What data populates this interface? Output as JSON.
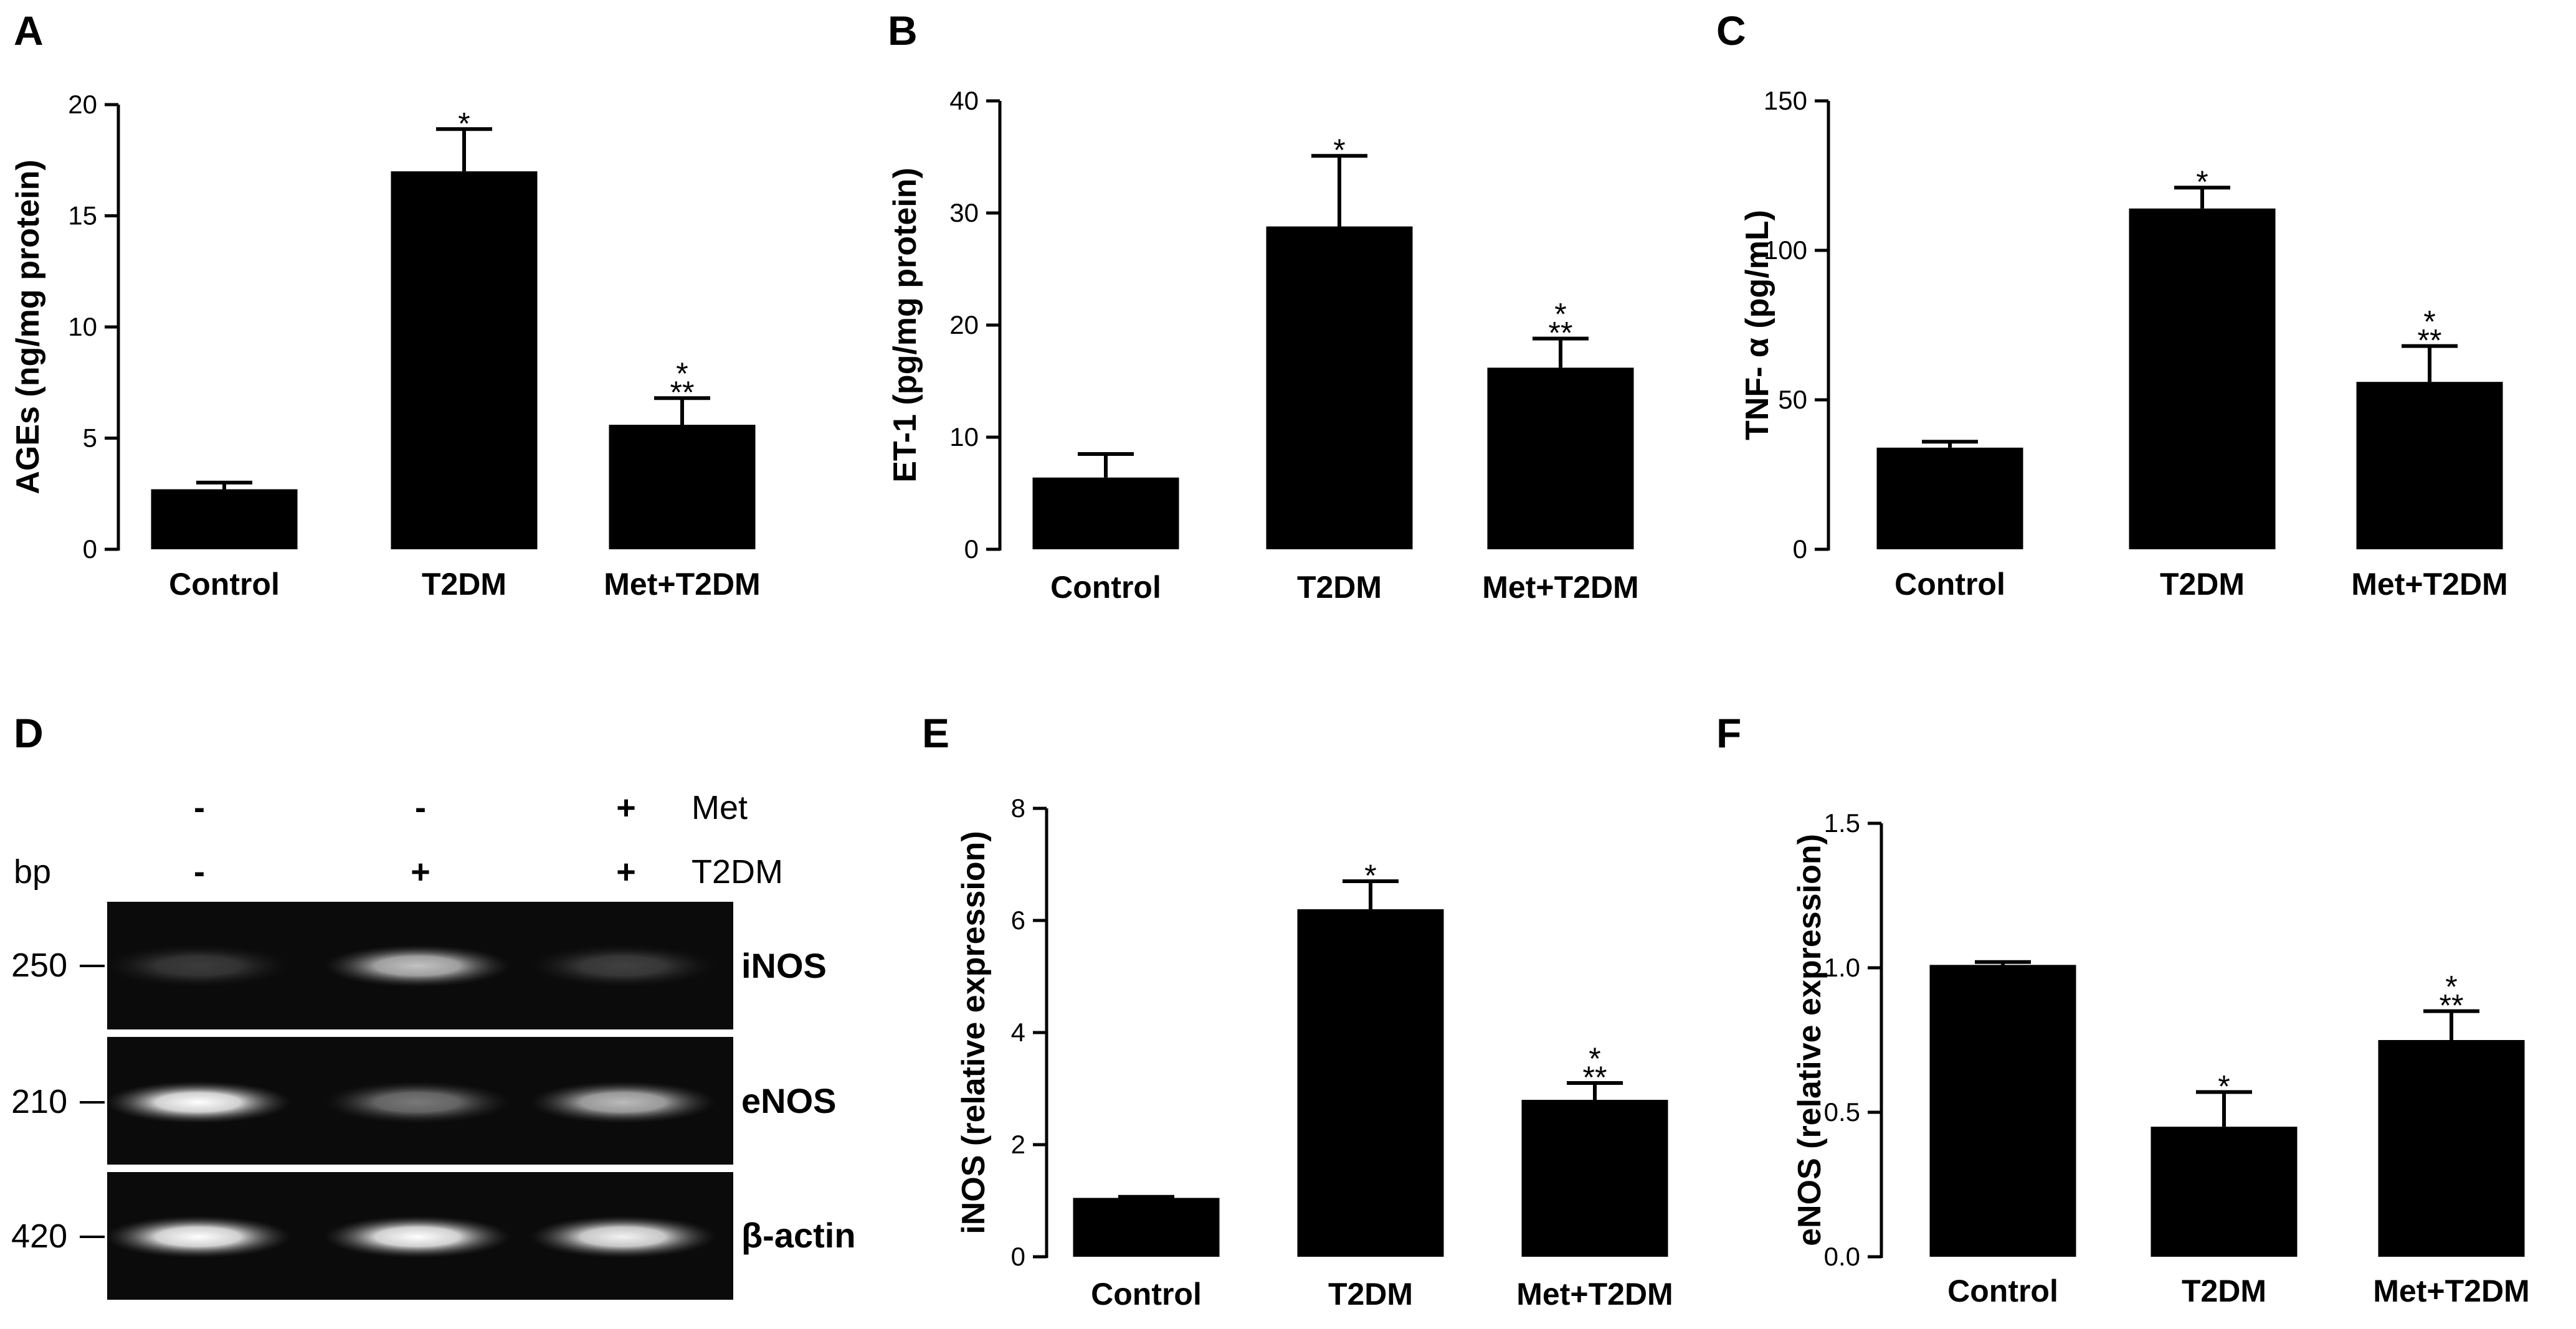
{
  "figure": {
    "panel_letters": [
      "A",
      "B",
      "C",
      "D",
      "E",
      "F"
    ]
  },
  "chart_data": [
    {
      "panel": "A",
      "type": "bar",
      "categories": [
        "Control",
        "T2DM",
        "Met+T2DM"
      ],
      "values": [
        2.7,
        17.0,
        5.6
      ],
      "errors": [
        0.3,
        1.9,
        1.2
      ],
      "significance": [
        [],
        [
          "*"
        ],
        [
          "*",
          "**"
        ]
      ],
      "ylabel": "AGEs (ng/mg protein)",
      "ylim": [
        0,
        20
      ],
      "yticks": [
        "0",
        "5",
        "10",
        "15",
        "20"
      ]
    },
    {
      "panel": "B",
      "type": "bar",
      "categories": [
        "Control",
        "T2DM",
        "Met+T2DM"
      ],
      "values": [
        6.4,
        28.8,
        16.2
      ],
      "errors": [
        2.1,
        6.3,
        2.6
      ],
      "significance": [
        [],
        [
          "*"
        ],
        [
          "*",
          "**"
        ]
      ],
      "ylabel": "ET-1 (pg/mg protein)",
      "ylim": [
        0,
        40
      ],
      "yticks": [
        "0",
        "10",
        "20",
        "30",
        "40"
      ]
    },
    {
      "panel": "C",
      "type": "bar",
      "categories": [
        "Control",
        "T2DM",
        "Met+T2DM"
      ],
      "values": [
        34,
        114,
        56
      ],
      "errors": [
        2,
        7,
        12
      ],
      "significance": [
        [],
        [
          "*"
        ],
        [
          "*",
          "**"
        ]
      ],
      "ylabel": "TNF- α (pg/mL)",
      "ylim": [
        0,
        150
      ],
      "yticks": [
        "0",
        "50",
        "100",
        "150"
      ]
    },
    {
      "panel": "E",
      "type": "bar",
      "categories": [
        "Control",
        "T2DM",
        "Met+T2DM"
      ],
      "values": [
        1.05,
        6.2,
        2.8
      ],
      "errors": [
        0.02,
        0.5,
        0.3
      ],
      "significance": [
        [],
        [
          "*"
        ],
        [
          "*",
          "**"
        ]
      ],
      "ylabel": "iNOS (relative expression)",
      "ylim": [
        0,
        8
      ],
      "yticks": [
        "0",
        "2",
        "4",
        "6",
        "8"
      ]
    },
    {
      "panel": "F",
      "type": "bar",
      "categories": [
        "Control",
        "T2DM",
        "Met+T2DM"
      ],
      "values": [
        1.01,
        0.45,
        0.75
      ],
      "errors": [
        0.01,
        0.12,
        0.1
      ],
      "significance": [
        [],
        [
          "*"
        ],
        [
          "*",
          "**"
        ]
      ],
      "ylabel": "eNOS (relative expression)",
      "ylim": [
        0,
        1.5
      ],
      "yticks": [
        "0.0",
        "0.5",
        "1.0",
        "1.5"
      ]
    }
  ],
  "gel": {
    "panel": "D",
    "bp_label": "bp",
    "treatments": [
      {
        "name": "Met",
        "lanes": [
          "-",
          "-",
          "+"
        ]
      },
      {
        "name": "T2DM",
        "lanes": [
          "-",
          "+",
          "+"
        ]
      }
    ],
    "rows": [
      {
        "gene": "iNOS",
        "bp": "250",
        "intensities": [
          0.2,
          0.75,
          0.22
        ]
      },
      {
        "gene": "eNOS",
        "bp": "210",
        "intensities": [
          1.0,
          0.45,
          0.72
        ]
      },
      {
        "gene": "β-actin",
        "bp": "420",
        "intensities": [
          1.0,
          1.0,
          0.95
        ]
      }
    ]
  }
}
